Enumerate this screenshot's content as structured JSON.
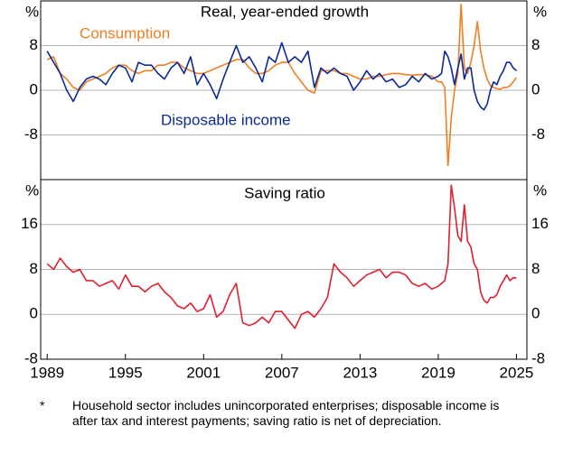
{
  "chart_data": [
    {
      "type": "line",
      "title": "Real, year-ended growth",
      "y_unit": "%",
      "x": [
        1989,
        1989.5,
        1990,
        1990.5,
        1991,
        1991.5,
        1992,
        1992.5,
        1993,
        1993.5,
        1994,
        1994.5,
        1995,
        1995.5,
        1996,
        1996.5,
        1997,
        1997.5,
        1998,
        1998.5,
        1999,
        1999.5,
        2000,
        2000.5,
        2001,
        2001.5,
        2002,
        2002.5,
        2003,
        2003.5,
        2004,
        2004.5,
        2005,
        2005.5,
        2006,
        2006.5,
        2007,
        2007.5,
        2008,
        2008.5,
        2009,
        2009.5,
        2010,
        2010.5,
        2011,
        2011.5,
        2012,
        2012.5,
        2013,
        2013.5,
        2014,
        2014.5,
        2015,
        2015.5,
        2016,
        2016.5,
        2017,
        2017.5,
        2018,
        2018.5,
        2019,
        2019.25,
        2019.5,
        2019.75,
        2020,
        2020.25,
        2020.5,
        2020.75,
        2021,
        2021.25,
        2021.5,
        2021.75,
        2022,
        2022.25,
        2022.5,
        2022.75,
        2023,
        2023.25,
        2023.5,
        2023.75,
        2024,
        2024.25,
        2024.5,
        2024.75,
        2025
      ],
      "series": [
        {
          "name": "Consumption",
          "color": "#f07f22",
          "values": [
            5.5,
            6,
            3,
            2,
            0.5,
            0,
            1.5,
            2,
            2.5,
            3,
            4,
            4.5,
            4.5,
            3.5,
            3,
            3.5,
            3.5,
            4.5,
            4.5,
            5,
            5,
            4,
            3.5,
            3,
            3,
            3.5,
            4,
            4.5,
            5,
            5.5,
            5.5,
            4,
            3,
            3,
            3.5,
            4.5,
            5,
            5,
            3,
            1.5,
            0,
            -0.5,
            3.5,
            3.5,
            3.5,
            3,
            3,
            2.5,
            2,
            2,
            2.5,
            2.5,
            2.8,
            3,
            3,
            2.8,
            2.7,
            2.8,
            2.8,
            2.5,
            1.5,
            1.5,
            0.5,
            -13.5,
            -5,
            0,
            3,
            15.4,
            4,
            3,
            5,
            8,
            12.3,
            7,
            4,
            2,
            0.8,
            0.5,
            0.3,
            0.2,
            0.5,
            0.5,
            0.8,
            1.5,
            2.3
          ]
        },
        {
          "name": "Disposable income",
          "color": "#0a2a9c",
          "values": [
            7,
            5,
            3,
            0,
            -2,
            0.5,
            2,
            2.5,
            2,
            1,
            3,
            4.5,
            4,
            1.5,
            5,
            4.5,
            4.5,
            3,
            2,
            4,
            5,
            3,
            6,
            1,
            3,
            1,
            -1.5,
            2,
            5,
            8,
            5,
            6,
            4,
            1.5,
            6,
            5,
            8.5,
            5,
            6,
            5,
            7,
            0.5,
            4,
            3,
            4,
            3,
            2.5,
            0,
            1.5,
            3.5,
            2,
            3,
            1.5,
            2,
            0.5,
            1,
            2.5,
            1.5,
            3,
            2,
            2.5,
            3,
            7,
            6,
            4,
            1,
            4,
            6.5,
            2,
            4,
            4,
            0,
            -2,
            -3,
            -3.5,
            -2.5,
            0,
            1.5,
            1,
            2.5,
            3.5,
            5,
            5,
            4,
            3.5
          ]
        }
      ],
      "xlim": [
        1988.5,
        2025.8
      ],
      "ylim": [
        -16,
        16
      ],
      "yticks": [
        -8,
        0,
        8
      ],
      "grid": true
    },
    {
      "type": "line",
      "title": "Saving ratio",
      "y_unit": "%",
      "x": [
        1989,
        1989.5,
        1990,
        1990.5,
        1991,
        1991.5,
        1992,
        1992.5,
        1993,
        1993.5,
        1994,
        1994.5,
        1995,
        1995.5,
        1996,
        1996.5,
        1997,
        1997.5,
        1998,
        1998.5,
        1999,
        1999.5,
        2000,
        2000.5,
        2001,
        2001.5,
        2002,
        2002.5,
        2003,
        2003.5,
        2004,
        2004.5,
        2005,
        2005.5,
        2006,
        2006.5,
        2007,
        2007.5,
        2008,
        2008.5,
        2009,
        2009.5,
        2010,
        2010.5,
        2011,
        2011.5,
        2012,
        2012.5,
        2013,
        2013.5,
        2014,
        2014.5,
        2015,
        2015.5,
        2016,
        2016.5,
        2017,
        2017.5,
        2018,
        2018.5,
        2019,
        2019.25,
        2019.5,
        2019.75,
        2020,
        2020.25,
        2020.5,
        2020.75,
        2021,
        2021.25,
        2021.5,
        2021.75,
        2022,
        2022.25,
        2022.5,
        2022.75,
        2023,
        2023.25,
        2023.5,
        2023.75,
        2024,
        2024.25,
        2024.5,
        2024.75,
        2025
      ],
      "series": [
        {
          "color": "#e0202e",
          "values": [
            9,
            8,
            10,
            8.5,
            7.5,
            8,
            6,
            6,
            5,
            5.5,
            6,
            4.5,
            7,
            5,
            5,
            4,
            5,
            5.5,
            4,
            3,
            1.5,
            1,
            2,
            0.5,
            1,
            3.5,
            -0.5,
            0.5,
            3.5,
            5.5,
            -1.5,
            -2,
            -1.5,
            -0.5,
            -1.5,
            0.5,
            0.5,
            -1,
            -2.5,
            0,
            0.5,
            -0.5,
            1,
            3,
            9,
            7.5,
            6.5,
            5,
            6,
            7,
            7.5,
            8,
            6.5,
            7.5,
            7.5,
            7,
            5.5,
            5,
            5.5,
            4.5,
            5,
            5.5,
            6,
            9,
            23,
            19,
            14,
            13,
            19.5,
            13,
            12,
            9,
            8,
            4,
            2.5,
            2,
            3,
            3,
            3.5,
            5,
            6,
            7,
            6,
            6.5,
            6.5
          ]
        }
      ],
      "xlim": [
        1988.5,
        2025.8
      ],
      "ylim": [
        -8,
        24
      ],
      "yticks": [
        -8,
        0,
        8,
        16
      ],
      "xticks": [
        1989,
        1995,
        2001,
        2007,
        2013,
        2019,
        2025
      ],
      "grid": true
    }
  ],
  "footnote": {
    "marker": "*",
    "text": "Household sector includes unincorporated enterprises; disposable income is after tax and interest payments; saving ratio is net of depreciation."
  }
}
